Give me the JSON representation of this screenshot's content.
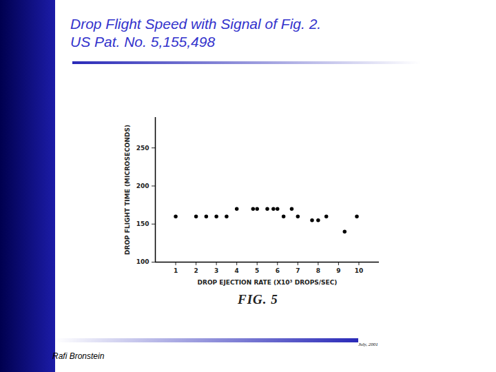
{
  "slide": {
    "title": [
      "Drop Flight Speed with Signal of Fig. 2.",
      "US Pat. No. 5,155,498"
    ],
    "author": "Rafi Bronstein",
    "date": "July, 2001"
  },
  "chart_data": {
    "type": "scatter",
    "caption": "FIG. 5",
    "x_label": "DROP EJECTION RATE (X10³ DROPS/SEC)",
    "y_label": "DROP FLIGHT TIME (MICROSECONDS)",
    "x": [
      1,
      2,
      2.5,
      3,
      3.5,
      4,
      4.8,
      5,
      5.5,
      5.8,
      6,
      6.3,
      6.7,
      7,
      7.7,
      8,
      8.4,
      9.3,
      9.9
    ],
    "series": [
      {
        "name": "drop flight time",
        "color": "#000000",
        "marker": "circle",
        "values": [
          160,
          160,
          160,
          160,
          160,
          170,
          170,
          170,
          170,
          170,
          170,
          160,
          170,
          160,
          155,
          155,
          160,
          140,
          160
        ]
      }
    ],
    "xlim": [
      0,
      11
    ],
    "xticks": [
      1,
      2,
      3,
      4,
      5,
      6,
      7,
      8,
      9,
      10
    ],
    "ylim": [
      100,
      290
    ],
    "yticks": [
      100,
      150,
      200,
      250
    ],
    "grid": false
  }
}
